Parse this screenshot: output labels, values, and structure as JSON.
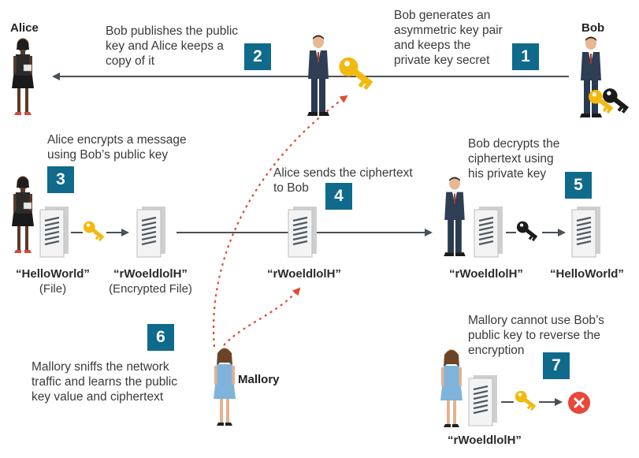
{
  "colors": {
    "badge": "#0f6a8c",
    "arrow": "#4a5056",
    "dashed": "#e04a2f",
    "public_key": "#f2b90f",
    "private_key": "#1b1b1b",
    "error": "#e8473a"
  },
  "people": {
    "alice": "Alice",
    "bob": "Bob",
    "mallory": "Mallory"
  },
  "steps": [
    {
      "number": "1",
      "text": "Bob generates an\nasymmetric key pair\nand keeps the\nprivate key secret"
    },
    {
      "number": "2",
      "text": "Bob publishes the public\nkey and Alice keeps a\ncopy of it"
    },
    {
      "number": "3",
      "text": "Alice encrypts a message\nusing Bob’s public key"
    },
    {
      "number": "4",
      "text": "Alice sends the ciphertext\nto Bob"
    },
    {
      "number": "5",
      "text": "Bob decrypts the\nciphertext using\nhis private key"
    },
    {
      "number": "6",
      "text": "Mallory sniffs the network\ntraffic and learns the public\nkey value and ciphertext"
    },
    {
      "number": "7",
      "text": "Mallory cannot use Bob’s\npublic key to reverse the\nencryption"
    }
  ],
  "labels": {
    "plain_file": "“HelloWorld”",
    "plain_file_sub": "(File)",
    "enc_file": "“rWoeldlolH”",
    "enc_file_sub": "(Encrypted File)",
    "in_transit": "“rWoeldlolH”",
    "bob_cipher": "“rWoeldlolH”",
    "bob_plain": "“HelloWorld”",
    "mallory_cipher": "“rWoeldlolH”"
  },
  "icons": [
    "woman-figure",
    "man-figure",
    "document-icon",
    "public-key-icon",
    "private-key-icon",
    "error-x-icon"
  ]
}
